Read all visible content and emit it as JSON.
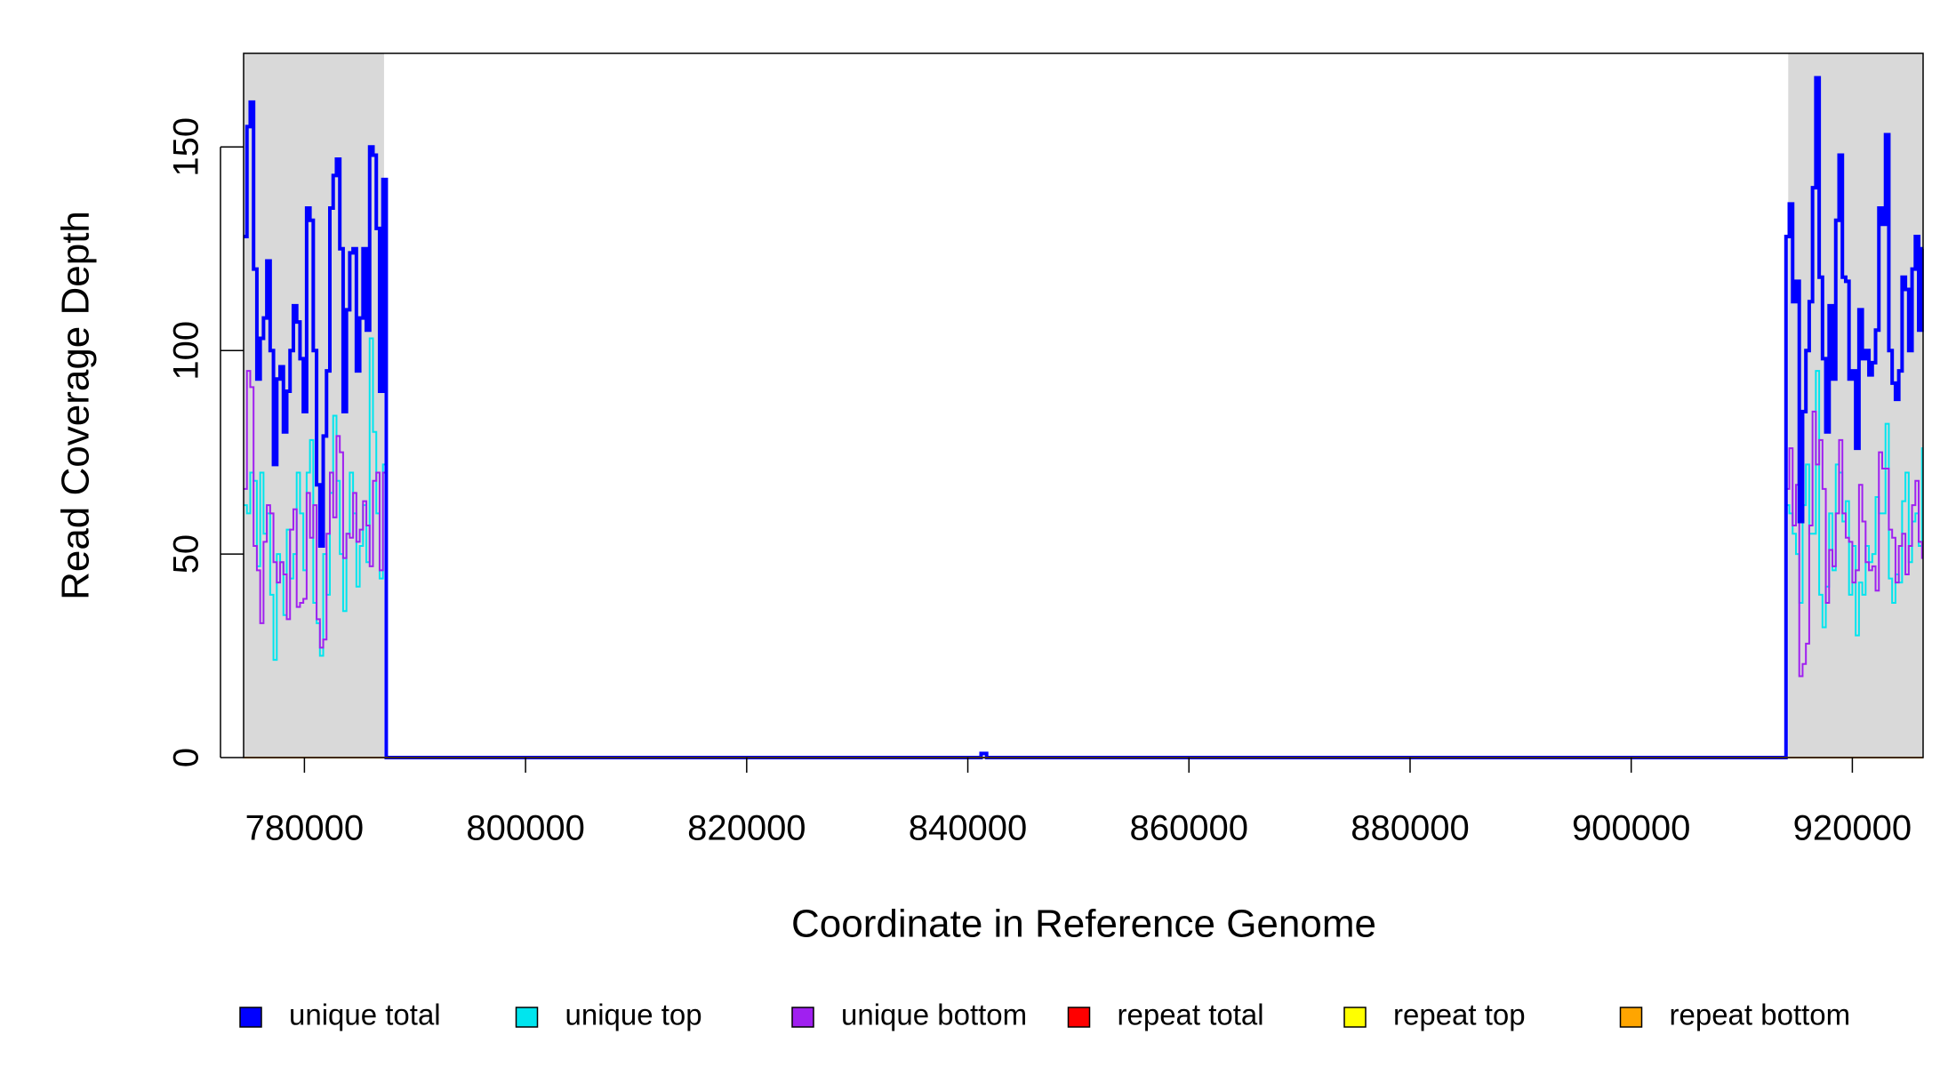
{
  "chart_data": {
    "type": "line",
    "step": true,
    "x_label": "Coordinate in Reference Genome",
    "y_label": "Read Coverage Depth",
    "xlim": [
      774500,
      926400
    ],
    "ylim": [
      0,
      173
    ],
    "xticks": [
      780000,
      800000,
      820000,
      840000,
      860000,
      880000,
      900000,
      920000
    ],
    "yticks": [
      0,
      50,
      100,
      150
    ],
    "shaded_regions": [
      [
        774500,
        787200
      ],
      [
        914200,
        926400
      ]
    ],
    "shade_color": "#d9d9d9",
    "legend": "bottom",
    "x": [
      774500,
      774800,
      775100,
      775400,
      775700,
      776000,
      776300,
      776600,
      776900,
      777200,
      777500,
      777800,
      778100,
      778400,
      778700,
      779000,
      779300,
      779600,
      779900,
      780200,
      780500,
      780800,
      781100,
      781400,
      781700,
      782000,
      782300,
      782600,
      782900,
      783200,
      783500,
      783800,
      784100,
      784400,
      784700,
      785000,
      785300,
      785600,
      785900,
      786200,
      786500,
      786800,
      787100,
      787400,
      841200,
      841700,
      914000,
      914300,
      914600,
      914900,
      915200,
      915500,
      915800,
      916100,
      916400,
      916700,
      917000,
      917300,
      917600,
      917900,
      918200,
      918500,
      918800,
      919100,
      919400,
      919700,
      920000,
      920300,
      920600,
      920900,
      921200,
      921500,
      921800,
      922100,
      922400,
      922700,
      923000,
      923300,
      923600,
      923900,
      924200,
      924500,
      924800,
      925100,
      925400,
      925700,
      926000,
      926300
    ],
    "series": [
      {
        "name": "unique total",
        "color": "#0000ff",
        "width": 4,
        "values": [
          128,
          155,
          161,
          120,
          93,
          103,
          108,
          122,
          100,
          72,
          93,
          96,
          80,
          90,
          100,
          111,
          107,
          98,
          85,
          135,
          132,
          100,
          67,
          52,
          79,
          95,
          135,
          143,
          147,
          125,
          85,
          110,
          124,
          125,
          95,
          108,
          125,
          105,
          150,
          148,
          130,
          90,
          142,
          0,
          1,
          0,
          128,
          136,
          112,
          117,
          58,
          85,
          100,
          112,
          140,
          167,
          118,
          98,
          80,
          111,
          93,
          132,
          148,
          118,
          117,
          93,
          95,
          76,
          110,
          98,
          100,
          94,
          97,
          105,
          135,
          131,
          153,
          100,
          92,
          88,
          95,
          118,
          115,
          100,
          120,
          128,
          105,
          125
        ]
      },
      {
        "name": "unique top",
        "color": "#00e5ee",
        "width": 2,
        "values": [
          62,
          60,
          70,
          68,
          47,
          70,
          55,
          60,
          40,
          24,
          50,
          48,
          35,
          56,
          44,
          50,
          70,
          60,
          46,
          70,
          78,
          38,
          33,
          25,
          50,
          40,
          65,
          84,
          68,
          50,
          36,
          55,
          70,
          60,
          42,
          52,
          62,
          48,
          103,
          80,
          60,
          44,
          72,
          0,
          1,
          0,
          62,
          60,
          55,
          50,
          38,
          62,
          72,
          55,
          55,
          95,
          40,
          32,
          42,
          60,
          46,
          72,
          70,
          58,
          63,
          40,
          52,
          30,
          43,
          40,
          52,
          48,
          50,
          64,
          60,
          60,
          82,
          44,
          38,
          45,
          43,
          63,
          70,
          48,
          58,
          60,
          52,
          76
        ]
      },
      {
        "name": "unique bottom",
        "color": "#a020f0",
        "width": 2,
        "values": [
          66,
          95,
          91,
          52,
          46,
          33,
          53,
          62,
          60,
          48,
          43,
          48,
          45,
          34,
          56,
          61,
          37,
          38,
          39,
          65,
          54,
          62,
          34,
          27,
          29,
          55,
          70,
          59,
          79,
          75,
          49,
          55,
          54,
          65,
          53,
          56,
          63,
          57,
          47,
          68,
          70,
          46,
          70,
          0,
          0,
          0,
          66,
          76,
          57,
          67,
          20,
          23,
          28,
          57,
          85,
          72,
          78,
          66,
          38,
          51,
          47,
          60,
          78,
          60,
          54,
          53,
          43,
          46,
          67,
          58,
          48,
          46,
          47,
          41,
          75,
          71,
          71,
          56,
          54,
          43,
          52,
          55,
          45,
          52,
          62,
          68,
          53,
          49
        ]
      },
      {
        "name": "repeat total",
        "color": "#ff0000",
        "width": 2,
        "values": [
          0,
          0,
          0,
          0,
          0,
          0,
          0,
          0,
          0,
          0,
          0,
          0,
          0,
          0,
          0,
          0,
          0,
          0,
          0,
          0,
          0,
          0,
          0,
          0,
          0,
          0,
          0,
          0,
          0,
          0,
          0,
          0,
          0,
          0,
          0,
          0,
          0,
          0,
          0,
          0,
          0,
          0,
          0,
          0,
          0,
          0,
          0,
          0,
          0,
          0,
          0,
          0,
          0,
          0,
          0,
          0,
          0,
          0,
          0,
          0,
          0,
          0,
          0,
          0,
          0,
          0,
          0,
          0,
          0,
          0,
          0,
          0,
          0,
          0,
          0,
          0,
          0,
          0,
          0,
          0,
          0,
          0,
          0,
          0,
          0,
          0,
          0,
          0
        ]
      },
      {
        "name": "repeat top",
        "color": "#ffff00",
        "width": 2,
        "values": [
          0,
          0,
          0,
          0,
          0,
          0,
          0,
          0,
          0,
          0,
          0,
          0,
          0,
          0,
          0,
          0,
          0,
          0,
          0,
          0,
          0,
          0,
          0,
          0,
          0,
          0,
          0,
          0,
          0,
          0,
          0,
          0,
          0,
          0,
          0,
          0,
          0,
          0,
          0,
          0,
          0,
          0,
          0,
          0,
          0,
          0,
          0,
          0,
          0,
          0,
          0,
          0,
          0,
          0,
          0,
          0,
          0,
          0,
          0,
          0,
          0,
          0,
          0,
          0,
          0,
          0,
          0,
          0,
          0,
          0,
          0,
          0,
          0,
          0,
          0,
          0,
          0,
          0,
          0,
          0,
          0,
          0,
          0,
          0,
          0,
          0,
          0,
          0
        ]
      },
      {
        "name": "repeat bottom",
        "color": "#ffa500",
        "width": 2,
        "values": [
          0,
          0,
          0,
          0,
          0,
          0,
          0,
          0,
          0,
          0,
          0,
          0,
          0,
          0,
          0,
          0,
          0,
          0,
          0,
          0,
          0,
          0,
          0,
          0,
          0,
          0,
          0,
          0,
          0,
          0,
          0,
          0,
          0,
          0,
          0,
          0,
          0,
          0,
          0,
          0,
          0,
          0,
          0,
          0,
          0,
          0,
          0,
          0,
          0,
          0,
          0,
          0,
          0,
          0,
          0,
          0,
          0,
          0,
          0,
          0,
          0,
          0,
          0,
          0,
          0,
          0,
          0,
          0,
          0,
          0,
          0,
          0,
          0,
          0,
          0,
          0,
          0,
          0,
          0,
          0,
          0,
          0,
          0,
          0,
          0,
          0,
          0,
          0
        ]
      }
    ]
  }
}
